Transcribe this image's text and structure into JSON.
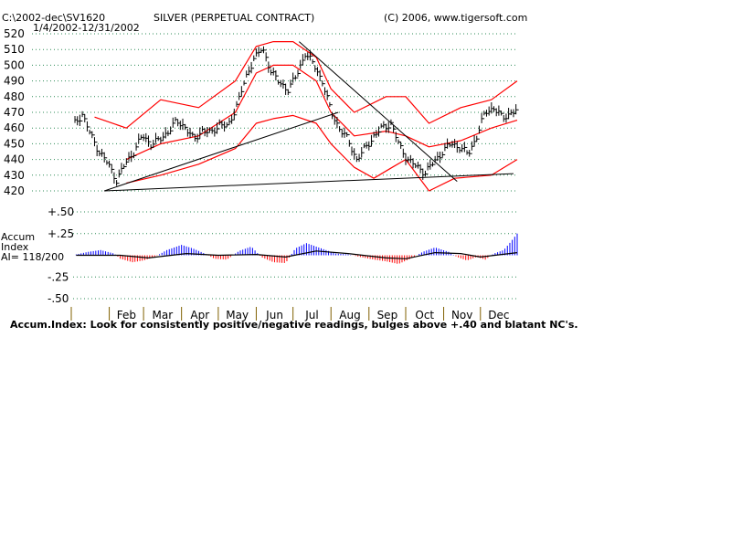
{
  "header": {
    "file_path": "C:\\2002-dec\\SV1620",
    "date_range": "1/4/2002-12/31/2002",
    "title": "SILVER (PERPETUAL CONTRACT)",
    "copyright": "(C) 2006, www.tigersoft.com"
  },
  "colors": {
    "price_bars": "#000000",
    "bands": "#ff0000",
    "trendlines": "#000000",
    "gridlines": "#2e8b57",
    "accum_positive": "#0000ff",
    "accum_negative": "#ff0000",
    "accum_ma": "#000000"
  },
  "chart_data": [
    {
      "type": "bar",
      "subtype": "ohlc",
      "x_type": "date",
      "ylim": [
        420,
        520
      ],
      "yticks": [
        520,
        510,
        500,
        490,
        480,
        470,
        460,
        450,
        440,
        430,
        420
      ],
      "yticklabels": [
        "520",
        "510",
        "500",
        "490",
        "480",
        "470",
        "460",
        "450",
        "440",
        "430",
        "420"
      ],
      "grid": true,
      "months": [
        "Feb",
        "Mar",
        "Apr",
        "May",
        "Jun",
        "Jul",
        "Aug",
        "Sep",
        "Oct",
        "Nov",
        "Dec"
      ],
      "price_anchors": [
        [
          "2002-01-04",
          463
        ],
        [
          "2002-01-10",
          469
        ],
        [
          "2002-01-17",
          455
        ],
        [
          "2002-01-24",
          445
        ],
        [
          "2002-01-31",
          437
        ],
        [
          "2002-02-07",
          427
        ],
        [
          "2002-02-14",
          437
        ],
        [
          "2002-02-21",
          445
        ],
        [
          "2002-02-28",
          455
        ],
        [
          "2002-03-07",
          450
        ],
        [
          "2002-03-14",
          452
        ],
        [
          "2002-03-21",
          458
        ],
        [
          "2002-03-28",
          464
        ],
        [
          "2002-04-04",
          461
        ],
        [
          "2002-04-11",
          452
        ],
        [
          "2002-04-18",
          459
        ],
        [
          "2002-04-25",
          456
        ],
        [
          "2002-05-02",
          463
        ],
        [
          "2002-05-09",
          460
        ],
        [
          "2002-05-16",
          475
        ],
        [
          "2002-05-23",
          490
        ],
        [
          "2002-05-30",
          505
        ],
        [
          "2002-06-06",
          510
        ],
        [
          "2002-06-13",
          497
        ],
        [
          "2002-06-20",
          488
        ],
        [
          "2002-06-27",
          485
        ],
        [
          "2002-07-04",
          493
        ],
        [
          "2002-07-11",
          508
        ],
        [
          "2002-07-18",
          500
        ],
        [
          "2002-07-25",
          490
        ],
        [
          "2002-08-01",
          470
        ],
        [
          "2002-08-08",
          460
        ],
        [
          "2002-08-15",
          452
        ],
        [
          "2002-08-22",
          440
        ],
        [
          "2002-08-29",
          447
        ],
        [
          "2002-09-05",
          455
        ],
        [
          "2002-09-12",
          460
        ],
        [
          "2002-09-19",
          463
        ],
        [
          "2002-09-26",
          448
        ],
        [
          "2002-10-03",
          440
        ],
        [
          "2002-10-10",
          435
        ],
        [
          "2002-10-17",
          432
        ],
        [
          "2002-10-24",
          438
        ],
        [
          "2002-10-31",
          445
        ],
        [
          "2002-11-07",
          450
        ],
        [
          "2002-11-14",
          448
        ],
        [
          "2002-11-21",
          443
        ],
        [
          "2002-11-28",
          455
        ],
        [
          "2002-12-05",
          470
        ],
        [
          "2002-12-12",
          473
        ],
        [
          "2002-12-19",
          466
        ],
        [
          "2002-12-26",
          470
        ],
        [
          "2002-12-31",
          471
        ]
      ],
      "upper_band": [
        [
          "2002-01-20",
          467
        ],
        [
          "2002-02-15",
          460
        ],
        [
          "2002-03-15",
          478
        ],
        [
          "2002-04-15",
          473
        ],
        [
          "2002-05-15",
          490
        ],
        [
          "2002-06-01",
          512
        ],
        [
          "2002-06-15",
          515
        ],
        [
          "2002-07-01",
          515
        ],
        [
          "2002-07-20",
          505
        ],
        [
          "2002-08-01",
          485
        ],
        [
          "2002-08-20",
          470
        ],
        [
          "2002-09-15",
          480
        ],
        [
          "2002-10-01",
          480
        ],
        [
          "2002-10-20",
          463
        ],
        [
          "2002-11-15",
          473
        ],
        [
          "2002-12-10",
          478
        ],
        [
          "2002-12-31",
          490
        ]
      ],
      "mid_band": [
        [
          "2002-02-15",
          440
        ],
        [
          "2002-03-15",
          450
        ],
        [
          "2002-04-15",
          455
        ],
        [
          "2002-05-15",
          470
        ],
        [
          "2002-06-01",
          495
        ],
        [
          "2002-06-15",
          500
        ],
        [
          "2002-07-01",
          500
        ],
        [
          "2002-07-20",
          490
        ],
        [
          "2002-08-01",
          470
        ],
        [
          "2002-08-20",
          455
        ],
        [
          "2002-09-15",
          458
        ],
        [
          "2002-10-01",
          455
        ],
        [
          "2002-10-20",
          448
        ],
        [
          "2002-11-15",
          452
        ],
        [
          "2002-12-10",
          460
        ],
        [
          "2002-12-31",
          465
        ]
      ],
      "lower_band": [
        [
          "2002-02-15",
          425
        ],
        [
          "2002-03-15",
          430
        ],
        [
          "2002-04-15",
          437
        ],
        [
          "2002-05-15",
          447
        ],
        [
          "2002-06-01",
          463
        ],
        [
          "2002-06-15",
          466
        ],
        [
          "2002-07-01",
          468
        ],
        [
          "2002-07-20",
          463
        ],
        [
          "2002-08-01",
          450
        ],
        [
          "2002-08-20",
          435
        ],
        [
          "2002-09-05",
          428
        ],
        [
          "2002-09-20",
          435
        ],
        [
          "2002-10-01",
          440
        ],
        [
          "2002-10-20",
          420
        ],
        [
          "2002-11-10",
          428
        ],
        [
          "2002-12-10",
          430
        ],
        [
          "2002-12-31",
          440
        ]
      ],
      "trendlines": [
        {
          "from": [
            "2002-01-28",
            420
          ],
          "to": [
            "2002-12-28",
            431
          ]
        },
        {
          "from": [
            "2002-01-28",
            420
          ],
          "to": [
            "2002-08-07",
            470
          ]
        },
        {
          "from": [
            "2002-07-06",
            515
          ],
          "to": [
            "2002-11-12",
            426
          ]
        }
      ]
    },
    {
      "type": "bar",
      "name": "Accum Index",
      "x_type": "date",
      "ylabel": "Accum Index",
      "annotation": "AI= 118/200",
      "ylim": [
        -0.5,
        0.5
      ],
      "yticks": [
        0.5,
        0.25,
        -0.25,
        -0.5
      ],
      "yticklabels": [
        "+.50",
        "+.25",
        "-.25",
        "-.50"
      ],
      "zero_line": false,
      "values": [
        [
          "2002-01-05",
          0.01
        ],
        [
          "2002-01-15",
          0.04
        ],
        [
          "2002-01-25",
          0.06
        ],
        [
          "2002-02-05",
          0.02
        ],
        [
          "2002-02-10",
          -0.04
        ],
        [
          "2002-02-20",
          -0.08
        ],
        [
          "2002-03-01",
          -0.06
        ],
        [
          "2002-03-10",
          -0.02
        ],
        [
          "2002-03-20",
          0.06
        ],
        [
          "2002-04-01",
          0.12
        ],
        [
          "2002-04-10",
          0.08
        ],
        [
          "2002-04-20",
          0.02
        ],
        [
          "2002-04-28",
          -0.04
        ],
        [
          "2002-05-08",
          -0.05
        ],
        [
          "2002-05-18",
          0.05
        ],
        [
          "2002-05-28",
          0.1
        ],
        [
          "2002-06-05",
          -0.02
        ],
        [
          "2002-06-15",
          -0.08
        ],
        [
          "2002-06-25",
          -0.09
        ],
        [
          "2002-07-03",
          0.08
        ],
        [
          "2002-07-12",
          0.14
        ],
        [
          "2002-07-20",
          0.1
        ],
        [
          "2002-07-28",
          0.06
        ],
        [
          "2002-08-05",
          0.02
        ],
        [
          "2002-08-15",
          0.01
        ],
        [
          "2002-08-25",
          -0.02
        ],
        [
          "2002-09-05",
          -0.05
        ],
        [
          "2002-09-15",
          -0.07
        ],
        [
          "2002-09-25",
          -0.1
        ],
        [
          "2002-10-05",
          -0.04
        ],
        [
          "2002-10-15",
          0.04
        ],
        [
          "2002-10-25",
          0.09
        ],
        [
          "2002-11-05",
          0.04
        ],
        [
          "2002-11-12",
          -0.02
        ],
        [
          "2002-11-20",
          -0.06
        ],
        [
          "2002-11-28",
          -0.02
        ],
        [
          "2002-12-05",
          -0.05
        ],
        [
          "2002-12-12",
          0.02
        ],
        [
          "2002-12-20",
          0.06
        ],
        [
          "2002-12-26",
          0.16
        ],
        [
          "2002-12-31",
          0.25
        ]
      ],
      "ma": [
        [
          "2002-01-05",
          0.0
        ],
        [
          "2002-02-10",
          0.0
        ],
        [
          "2002-03-05",
          -0.03
        ],
        [
          "2002-04-05",
          0.02
        ],
        [
          "2002-05-01",
          0.0
        ],
        [
          "2002-06-01",
          0.01
        ],
        [
          "2002-06-25",
          -0.02
        ],
        [
          "2002-07-20",
          0.05
        ],
        [
          "2002-08-15",
          0.02
        ],
        [
          "2002-09-15",
          -0.03
        ],
        [
          "2002-10-01",
          -0.04
        ],
        [
          "2002-10-25",
          0.03
        ],
        [
          "2002-11-15",
          0.02
        ],
        [
          "2002-12-01",
          -0.02
        ],
        [
          "2002-12-31",
          0.03
        ]
      ]
    }
  ],
  "footer": {
    "note": "Accum.Index: Look for consistently positive/negative readings, bulges above +.40 and blatant NC's."
  }
}
